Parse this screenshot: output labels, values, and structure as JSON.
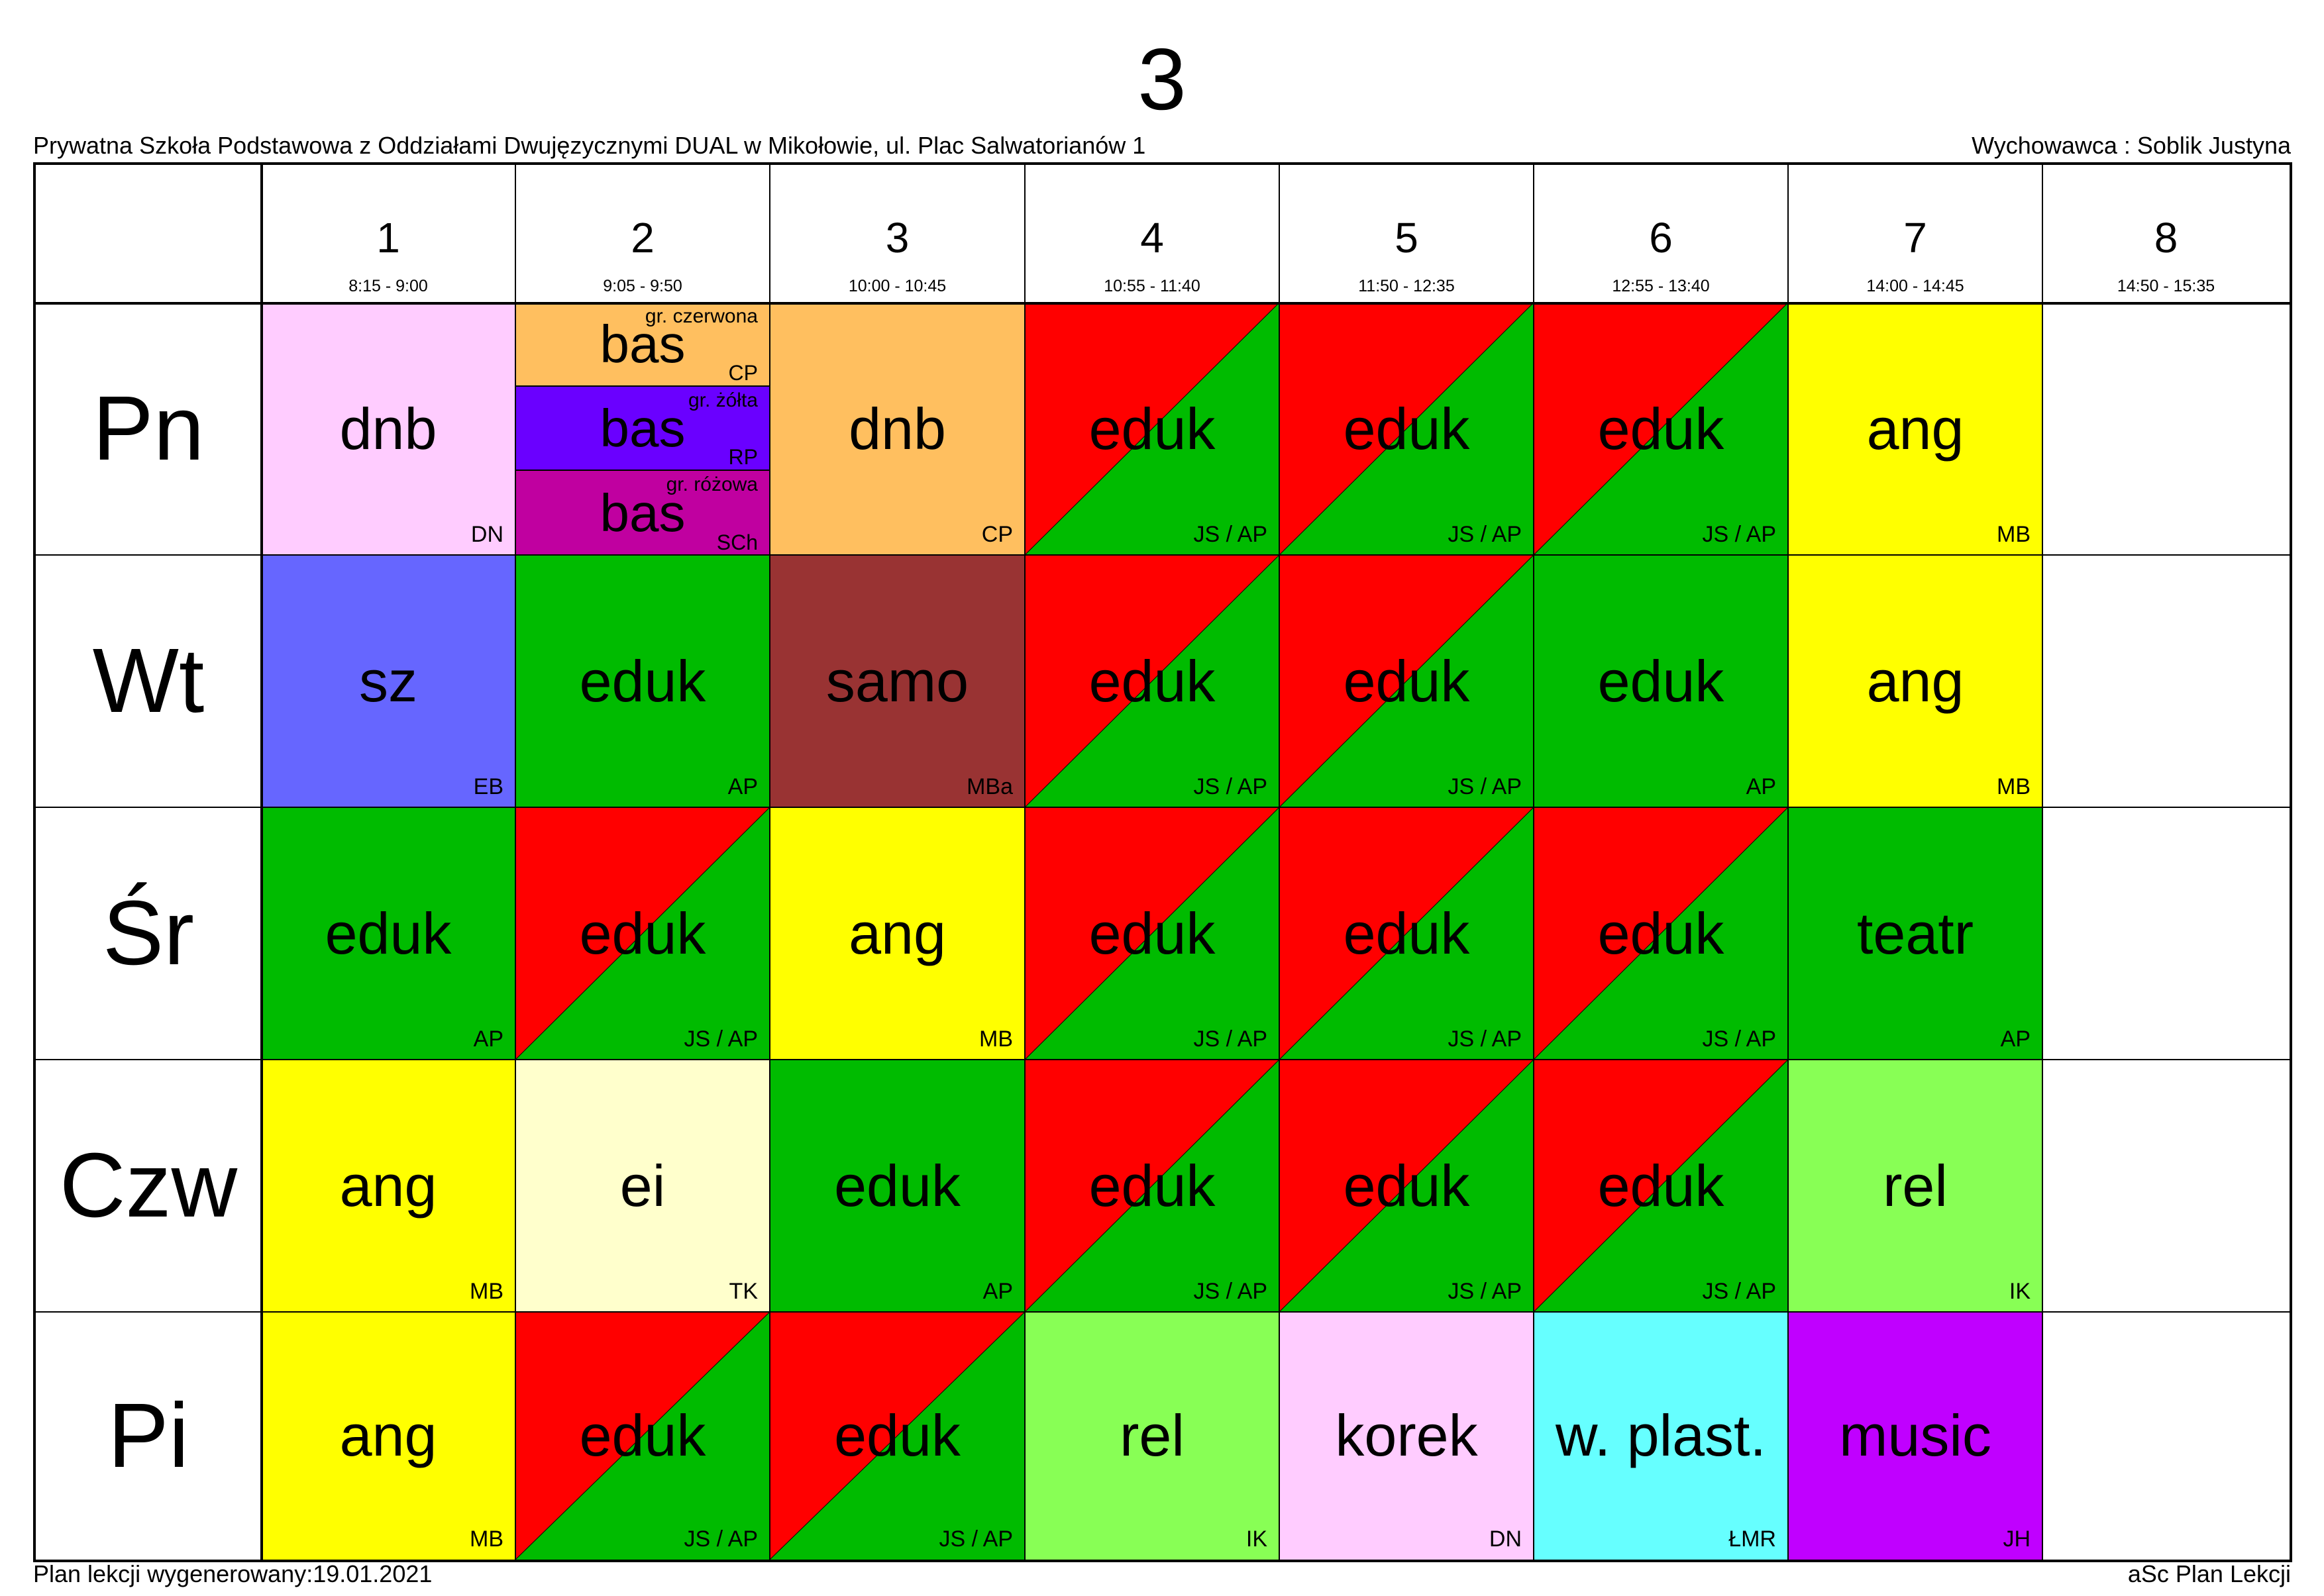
{
  "header": {
    "title": "3",
    "school": "Prywatna Szkoła Podstawowa z Oddziałami Dwujęzycznymi DUAL w Mikołowie, ul. Plac Salwatorianów 1",
    "teacher": "Wychowawca : Soblik Justyna"
  },
  "footer": {
    "generated": "Plan lekcji wygenerowany:19.01.2021",
    "brand": "aSc Plan Lekcji"
  },
  "periods": [
    {
      "num": "1",
      "time": "8:15 - 9:00"
    },
    {
      "num": "2",
      "time": "9:05 - 9:50"
    },
    {
      "num": "3",
      "time": "10:00 - 10:45"
    },
    {
      "num": "4",
      "time": "10:55 - 11:40"
    },
    {
      "num": "5",
      "time": "11:50 - 12:35"
    },
    {
      "num": "6",
      "time": "12:55 - 13:40"
    },
    {
      "num": "7",
      "time": "14:00 - 14:45"
    },
    {
      "num": "8",
      "time": "14:50 - 15:35"
    }
  ],
  "days": [
    {
      "name": "Pn",
      "lessons": [
        {
          "subject": "dnb",
          "teacher": "DN",
          "color": "#ffccff"
        },
        {
          "split": [
            {
              "group": "gr. czerwona",
              "subject": "bas",
              "teacher": "CP",
              "color": "#ffbf5f"
            },
            {
              "group": "gr. żółta",
              "subject": "bas",
              "teacher": "RP",
              "color": "#6a00ff"
            },
            {
              "group": "gr. różowa",
              "subject": "bas",
              "teacher": "SCh",
              "color": "#c000a0"
            }
          ]
        },
        {
          "subject": "dnb",
          "teacher": "CP",
          "color": "#ffbf5f"
        },
        {
          "subject": "eduk",
          "teacher": "JS / AP",
          "color": "diag"
        },
        {
          "subject": "eduk",
          "teacher": "JS / AP",
          "color": "diag"
        },
        {
          "subject": "eduk",
          "teacher": "JS / AP",
          "color": "diag"
        },
        {
          "subject": "ang",
          "teacher": "MB",
          "color": "#ffff00"
        },
        null
      ]
    },
    {
      "name": "Wt",
      "lessons": [
        {
          "subject": "sz",
          "teacher": "EB",
          "color": "#6666ff"
        },
        {
          "subject": "eduk",
          "teacher": "AP",
          "color": "#00bb00"
        },
        {
          "subject": "samo",
          "teacher": "MBa",
          "color": "#993333"
        },
        {
          "subject": "eduk",
          "teacher": "JS / AP",
          "color": "diag"
        },
        {
          "subject": "eduk",
          "teacher": "JS / AP",
          "color": "diag"
        },
        {
          "subject": "eduk",
          "teacher": "AP",
          "color": "#00bb00"
        },
        {
          "subject": "ang",
          "teacher": "MB",
          "color": "#ffff00"
        },
        null
      ]
    },
    {
      "name": "Śr",
      "lessons": [
        {
          "subject": "eduk",
          "teacher": "AP",
          "color": "#00bb00"
        },
        {
          "subject": "eduk",
          "teacher": "JS / AP",
          "color": "diag"
        },
        {
          "subject": "ang",
          "teacher": "MB",
          "color": "#ffff00"
        },
        {
          "subject": "eduk",
          "teacher": "JS / AP",
          "color": "diag"
        },
        {
          "subject": "eduk",
          "teacher": "JS / AP",
          "color": "diag"
        },
        {
          "subject": "eduk",
          "teacher": "JS / AP",
          "color": "diag"
        },
        {
          "subject": "teatr",
          "teacher": "AP",
          "color": "#00bb00"
        },
        null
      ]
    },
    {
      "name": "Czw",
      "lessons": [
        {
          "subject": "ang",
          "teacher": "MB",
          "color": "#ffff00"
        },
        {
          "subject": "ei",
          "teacher": "TK",
          "color": "#ffffcc"
        },
        {
          "subject": "eduk",
          "teacher": "AP",
          "color": "#00bb00"
        },
        {
          "subject": "eduk",
          "teacher": "JS / AP",
          "color": "diag"
        },
        {
          "subject": "eduk",
          "teacher": "JS / AP",
          "color": "diag"
        },
        {
          "subject": "eduk",
          "teacher": "JS / AP",
          "color": "diag"
        },
        {
          "subject": "rel",
          "teacher": "IK",
          "color": "#88ff55"
        },
        null
      ]
    },
    {
      "name": "Pi",
      "lessons": [
        {
          "subject": "ang",
          "teacher": "MB",
          "color": "#ffff00"
        },
        {
          "subject": "eduk",
          "teacher": "JS / AP",
          "color": "diag"
        },
        {
          "subject": "eduk",
          "teacher": "JS / AP",
          "color": "diag"
        },
        {
          "subject": "rel",
          "teacher": "IK",
          "color": "#88ff55"
        },
        {
          "subject": "korek",
          "teacher": "DN",
          "color": "#ffccff"
        },
        {
          "subject": "w. plast.",
          "teacher": "ŁMR",
          "color": "#66ffff"
        },
        {
          "subject": "music",
          "teacher": "JH",
          "color": "#c000ff"
        },
        null
      ]
    }
  ]
}
